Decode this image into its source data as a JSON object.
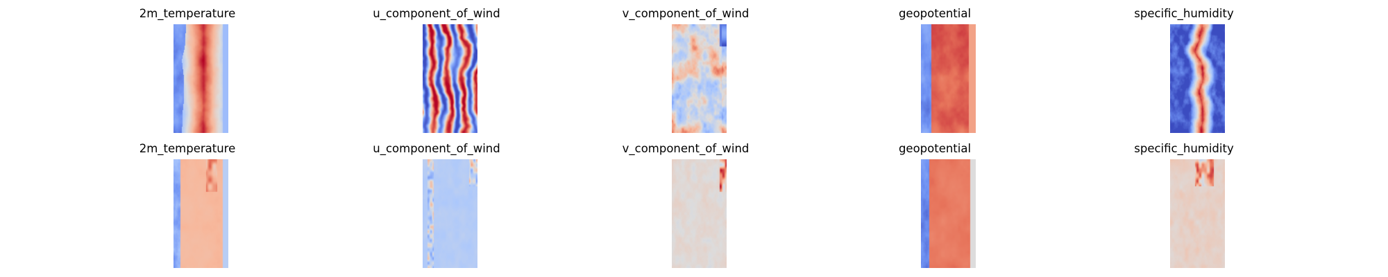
{
  "figure": {
    "rows": [
      {
        "panels": [
          {
            "title": "2m_temperature",
            "style": "temp_gt"
          },
          {
            "title": "u_component_of_wind",
            "style": "u_gt"
          },
          {
            "title": "v_component_of_wind",
            "style": "v_gt"
          },
          {
            "title": "geopotential",
            "style": "geo_gt"
          },
          {
            "title": "specific_humidity",
            "style": "hum_gt"
          }
        ]
      },
      {
        "panels": [
          {
            "title": "2m_temperature",
            "style": "temp_pred"
          },
          {
            "title": "u_component_of_wind",
            "style": "u_pred"
          },
          {
            "title": "v_component_of_wind",
            "style": "v_pred"
          },
          {
            "title": "geopotential",
            "style": "geo_pred"
          },
          {
            "title": "specific_humidity",
            "style": "hum_pred"
          }
        ]
      }
    ],
    "colormap": "coolwarm",
    "colormap_stops": [
      "#3b4cc0",
      "#6f92f3",
      "#aac7fd",
      "#dddcdc",
      "#f7b89c",
      "#e7745b",
      "#b40426"
    ]
  }
}
